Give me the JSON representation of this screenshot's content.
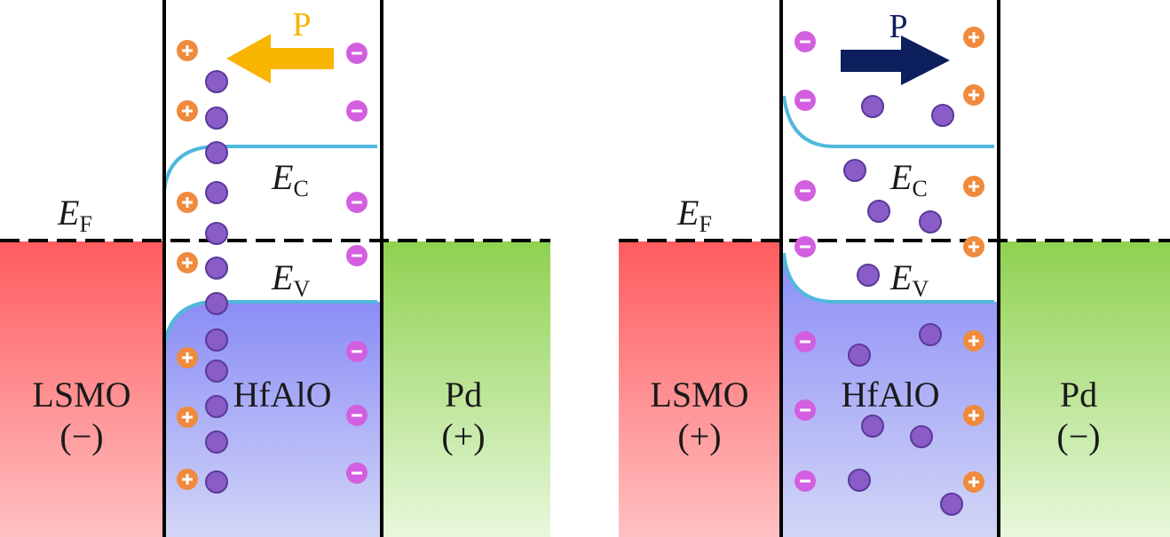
{
  "panels": [
    {
      "polarization": "P",
      "fermi_level": {
        "symbol": "E",
        "subscript": "F"
      },
      "conduction_band": {
        "symbol": "E",
        "subscript": "C"
      },
      "valence_band": {
        "symbol": "E",
        "subscript": "V"
      },
      "left_electrode": {
        "name": "LSMO",
        "sign": "(−)"
      },
      "insulator": {
        "name": "HfAlO"
      },
      "right_electrode": {
        "name": "Pd",
        "sign": "(+)"
      }
    },
    {
      "polarization": "P",
      "fermi_level": {
        "symbol": "E",
        "subscript": "F"
      },
      "conduction_band": {
        "symbol": "E",
        "subscript": "C"
      },
      "valence_band": {
        "symbol": "E",
        "subscript": "V"
      },
      "left_electrode": {
        "name": "LSMO",
        "sign": "(+)"
      },
      "insulator": {
        "name": "HfAlO"
      },
      "right_electrode": {
        "name": "Pd",
        "sign": "(−)"
      }
    }
  ]
}
